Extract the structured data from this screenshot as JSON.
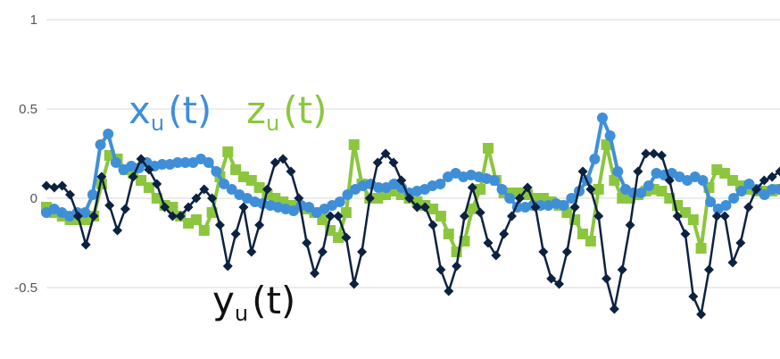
{
  "chart_data": {
    "type": "line",
    "title": "",
    "xlabel": "",
    "ylabel": "",
    "ylim": [
      -0.8,
      1
    ],
    "yticks": [
      1,
      0.5,
      0,
      -0.5
    ],
    "ytick_labels": [
      "1",
      "0.5",
      "0",
      "-0.5"
    ],
    "grid": true,
    "series_colors": {
      "x": "#3f8fd8",
      "y": "#0d2240",
      "z": "#8cc63f"
    },
    "series": [
      {
        "key": "x",
        "label_main": "x",
        "label_sub": "u",
        "label_tail": "(t)",
        "marker": "circle",
        "values": [
          -0.08,
          -0.06,
          -0.08,
          -0.1,
          -0.08,
          -0.08,
          0.02,
          0.3,
          0.36,
          0.2,
          0.16,
          0.18,
          0.17,
          0.2,
          0.18,
          0.19,
          0.19,
          0.2,
          0.2,
          0.2,
          0.22,
          0.2,
          0.15,
          0.08,
          0.05,
          0.02,
          0.0,
          -0.02,
          -0.03,
          -0.04,
          -0.05,
          -0.06,
          -0.07,
          -0.04,
          -0.05,
          -0.08,
          -0.06,
          -0.04,
          -0.02,
          0.02,
          0.05,
          0.07,
          0.08,
          0.06,
          0.06,
          0.08,
          0.06,
          0.03,
          0.04,
          0.05,
          0.07,
          0.08,
          0.12,
          0.14,
          0.12,
          0.13,
          0.12,
          0.11,
          0.1,
          0.05,
          0.0,
          -0.05,
          -0.05,
          -0.04,
          -0.04,
          -0.04,
          -0.03,
          -0.04,
          0.0,
          0.04,
          0.1,
          0.22,
          0.45,
          0.35,
          0.15,
          0.05,
          0.03,
          0.03,
          0.07,
          0.14,
          0.13,
          0.14,
          0.12,
          0.1,
          0.12,
          0.1,
          -0.02,
          -0.06,
          -0.04,
          0.0,
          0.04,
          0.08,
          0.05,
          0.02,
          0.05,
          0.05
        ]
      },
      {
        "key": "y",
        "label_main": "y",
        "label_sub": "u",
        "label_tail": "(t)",
        "marker": "diamond",
        "values": [
          0.07,
          0.06,
          0.07,
          0.02,
          -0.1,
          -0.26,
          -0.1,
          0.12,
          -0.04,
          -0.18,
          -0.06,
          0.12,
          0.22,
          0.16,
          0.08,
          -0.05,
          -0.1,
          -0.1,
          -0.05,
          0.0,
          0.05,
          0.0,
          -0.15,
          -0.38,
          -0.2,
          -0.05,
          -0.3,
          -0.15,
          0.05,
          0.2,
          0.22,
          0.15,
          0.0,
          -0.25,
          -0.42,
          -0.3,
          -0.1,
          -0.1,
          -0.22,
          -0.48,
          -0.3,
          0.0,
          0.2,
          0.25,
          0.2,
          0.1,
          0.0,
          -0.05,
          -0.05,
          -0.15,
          -0.4,
          -0.52,
          -0.38,
          -0.1,
          0.06,
          -0.08,
          -0.25,
          -0.32,
          -0.2,
          -0.1,
          0.0,
          0.06,
          -0.05,
          -0.3,
          -0.45,
          -0.48,
          -0.3,
          -0.05,
          0.15,
          0.05,
          -0.1,
          -0.45,
          -0.62,
          -0.4,
          -0.15,
          0.15,
          0.25,
          0.25,
          0.24,
          0.1,
          -0.1,
          -0.2,
          -0.55,
          -0.65,
          -0.4,
          -0.1,
          -0.1,
          -0.36,
          -0.25,
          -0.05,
          0.05,
          0.1,
          0.12,
          0.15
        ]
      },
      {
        "key": "z",
        "label_main": "z",
        "label_sub": "u",
        "label_tail": "(t)",
        "marker": "square",
        "values": [
          -0.05,
          -0.08,
          -0.1,
          -0.12,
          -0.12,
          -0.12,
          -0.1,
          0.08,
          0.24,
          0.22,
          0.16,
          0.14,
          0.1,
          0.06,
          0.0,
          -0.04,
          -0.05,
          -0.1,
          -0.14,
          -0.12,
          -0.18,
          -0.08,
          0.12,
          0.26,
          0.16,
          0.12,
          0.1,
          0.06,
          0.02,
          0.0,
          -0.02,
          -0.04,
          -0.05,
          -0.06,
          -0.08,
          -0.12,
          -0.18,
          -0.22,
          -0.08,
          0.3,
          0.08,
          0.0,
          0.0,
          0.02,
          0.04,
          0.02,
          0.0,
          -0.02,
          -0.04,
          -0.06,
          -0.1,
          -0.2,
          -0.3,
          -0.24,
          -0.06,
          0.05,
          0.28,
          0.1,
          0.03,
          0.03,
          0.03,
          0.02,
          0.0,
          0.0,
          -0.02,
          -0.04,
          -0.08,
          -0.12,
          -0.2,
          -0.24,
          0.05,
          0.3,
          0.1,
          0.0,
          0.0,
          0.02,
          0.04,
          0.05,
          0.04,
          0.0,
          -0.04,
          -0.08,
          -0.12,
          -0.28,
          0.06,
          0.16,
          0.14,
          0.1,
          0.07,
          0.05,
          0.04,
          0.04,
          0.04,
          0.05
        ]
      }
    ]
  }
}
